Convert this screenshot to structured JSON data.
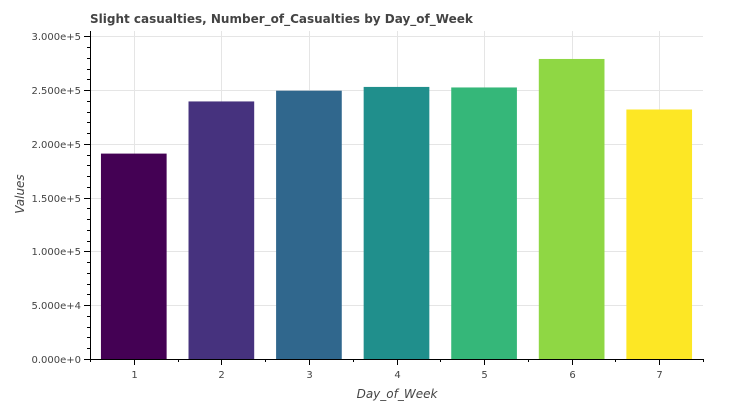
{
  "chart_data": {
    "type": "bar",
    "title": "Slight casualties, Number_of_Casualties by Day_of_Week",
    "xlabel": "Day_of_Week",
    "ylabel": "Values",
    "categories": [
      "1",
      "2",
      "3",
      "4",
      "5",
      "6",
      "7"
    ],
    "values": [
      191000,
      239500,
      249500,
      253000,
      252500,
      279000,
      232000
    ],
    "colors": [
      "#440154",
      "#46327e",
      "#30678d",
      "#208f8c",
      "#35b779",
      "#8fd744",
      "#fde725"
    ],
    "ylim": [
      0,
      305000
    ],
    "yticks": [
      0,
      50000,
      100000,
      150000,
      200000,
      250000,
      300000
    ],
    "ytick_labels": [
      "0.000e+0",
      "5.000e+4",
      "1.000e+5",
      "1.500e+5",
      "2.000e+5",
      "2.500e+5",
      "3.000e+5"
    ],
    "grid": true,
    "legend": "none"
  }
}
